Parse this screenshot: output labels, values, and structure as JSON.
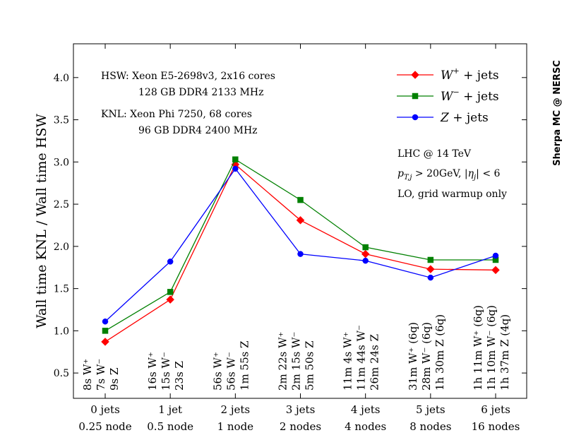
{
  "chart_data": {
    "type": "line",
    "ylabel": "Wall time  KNL   /   Wall time  HSW",
    "ylim": [
      0.2,
      4.4
    ],
    "yticks": [
      "0.5",
      "1.0",
      "1.5",
      "2.0",
      "2.5",
      "3.0",
      "3.5",
      "4.0"
    ],
    "categories": [
      [
        "0 jets",
        "0.25 node"
      ],
      [
        "1 jet",
        "0.5 node"
      ],
      [
        "2 jets",
        "1 node"
      ],
      [
        "3 jets",
        "2 nodes"
      ],
      [
        "4 jets",
        "4 nodes"
      ],
      [
        "5 jets",
        "8 nodes"
      ],
      [
        "6 jets",
        "16 nodes"
      ]
    ],
    "series": [
      {
        "name": "W⁺ + jets",
        "color": "#ff0000",
        "marker": "diamond",
        "values": [
          0.87,
          1.37,
          2.97,
          2.31,
          1.91,
          1.73,
          1.72
        ]
      },
      {
        "name": "W⁻ + jets",
        "color": "#008000",
        "marker": "square",
        "values": [
          1.0,
          1.46,
          3.03,
          2.55,
          1.99,
          1.84,
          1.84
        ]
      },
      {
        "name": "Z + jets",
        "color": "#0000ff",
        "marker": "circle",
        "values": [
          1.11,
          1.82,
          2.92,
          1.91,
          1.83,
          1.63,
          1.89
        ]
      }
    ],
    "run_times": [
      [
        "8s W⁺",
        "7s W⁻",
        "9s Z"
      ],
      [
        "16s W⁺",
        "15s W⁻",
        "23s Z"
      ],
      [
        "56s W⁺",
        "56s W⁻",
        "1m 55s Z"
      ],
      [
        "2m 22s W⁺",
        "2m 15s W⁻",
        "5m 50s Z"
      ],
      [
        "11m 4s W⁺",
        "11m 44s W⁻",
        "26m 24s Z"
      ],
      [
        "31m W⁺ (6q)",
        "28m W⁻ (6q)",
        "1h 30m Z (6q)"
      ],
      [
        "1h 11m W⁺ (6q)",
        "1h 10m W⁻ (6q)",
        "1h 37m Z (4q)"
      ]
    ],
    "annotations": {
      "hsw_line1": "HSW:  Xeon E5-2698v3, 2x16 cores",
      "hsw_line2": "128 GB DDR4 2133 MHz",
      "knl_line1": "KNL:  Xeon Phi 7250, 68 cores",
      "knl_line2": "96 GB DDR4 2400 MHz",
      "lhc": "LHC @ 14 TeV",
      "cuts": "p_T,j > 20GeV,  |η_j| < 6",
      "order": "LO,  grid warmup only",
      "credit": "Sherpa MC @ NERSC"
    },
    "legend_position": "top-right",
    "grid": false
  }
}
